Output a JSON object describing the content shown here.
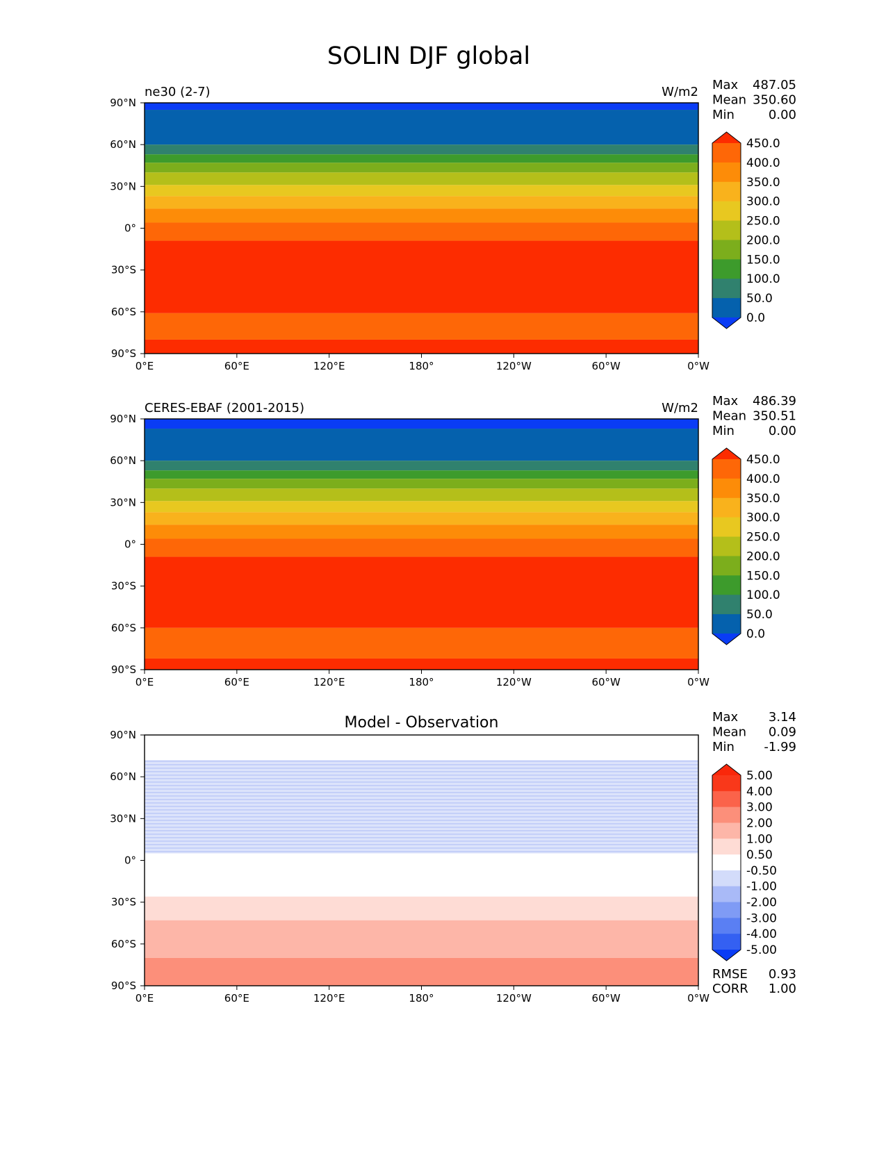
{
  "figure": {
    "title": "SOLIN DJF global"
  },
  "chart_data": [
    {
      "type": "heatmap",
      "name": "ne30",
      "left_title": "ne30 (2-7)",
      "center_title": "",
      "units": "W/m2",
      "stats": {
        "max": "487.05",
        "mean": "350.60",
        "min": "0.00"
      },
      "xticks": [
        "0°E",
        "60°E",
        "120°E",
        "180°",
        "120°W",
        "60°W",
        "0°W"
      ],
      "yticks": [
        "90°N",
        "60°N",
        "30°N",
        "0°",
        "30°S",
        "60°S",
        "90°S"
      ],
      "xlim": [
        0,
        360
      ],
      "ylim": [
        -90,
        90
      ],
      "levels": [
        "0.0",
        "50.0",
        "100.0",
        "150.0",
        "200.0",
        "250.0",
        "300.0",
        "350.0",
        "400.0",
        "450.0"
      ],
      "colors": [
        "#0a3cf5",
        "#0561ad",
        "#30816e",
        "#3d9b2c",
        "#7cae1c",
        "#b4bf1a",
        "#e8c820",
        "#f9b21c",
        "#fd8c08",
        "#fe6707",
        "#fd2c00"
      ],
      "bands": [
        {
          "lat_min": 85,
          "lat_max": 90,
          "color": "#0a3cf5"
        },
        {
          "lat_min": 60,
          "lat_max": 85,
          "color": "#0561ad"
        },
        {
          "lat_min": 53,
          "lat_max": 60,
          "color": "#30816e"
        },
        {
          "lat_min": 47,
          "lat_max": 53,
          "color": "#3d9b2c"
        },
        {
          "lat_min": 40,
          "lat_max": 47,
          "color": "#7cae1c"
        },
        {
          "lat_min": 31,
          "lat_max": 40,
          "color": "#b4bf1a"
        },
        {
          "lat_min": 23,
          "lat_max": 31,
          "color": "#e8c820"
        },
        {
          "lat_min": 14,
          "lat_max": 23,
          "color": "#f9b21c"
        },
        {
          "lat_min": 4,
          "lat_max": 14,
          "color": "#fd8c08"
        },
        {
          "lat_min": -9,
          "lat_max": 4,
          "color": "#fe6707"
        },
        {
          "lat_min": -61,
          "lat_max": -9,
          "color": "#fd2c00"
        },
        {
          "lat_min": -80,
          "lat_max": -61,
          "color": "#fe6707"
        },
        {
          "lat_min": -90,
          "lat_max": -80,
          "color": "#fd2c00"
        }
      ]
    },
    {
      "type": "heatmap",
      "name": "ceres",
      "left_title": "CERES-EBAF (2001-2015)",
      "center_title": "",
      "units": "W/m2",
      "stats": {
        "max": "486.39",
        "mean": "350.51",
        "min": "0.00"
      },
      "xticks": [
        "0°E",
        "60°E",
        "120°E",
        "180°",
        "120°W",
        "60°W",
        "0°W"
      ],
      "yticks": [
        "90°N",
        "60°N",
        "30°N",
        "0°",
        "30°S",
        "60°S",
        "90°S"
      ],
      "xlim": [
        0,
        360
      ],
      "ylim": [
        -90,
        90
      ],
      "levels": [
        "0.0",
        "50.0",
        "100.0",
        "150.0",
        "200.0",
        "250.0",
        "300.0",
        "350.0",
        "400.0",
        "450.0"
      ],
      "colors": [
        "#0a3cf5",
        "#0561ad",
        "#30816e",
        "#3d9b2c",
        "#7cae1c",
        "#b4bf1a",
        "#e8c820",
        "#f9b21c",
        "#fd8c08",
        "#fe6707",
        "#fd2c00"
      ],
      "bands": [
        {
          "lat_min": 83,
          "lat_max": 90,
          "color": "#0a3cf5"
        },
        {
          "lat_min": 60,
          "lat_max": 83,
          "color": "#0561ad"
        },
        {
          "lat_min": 53,
          "lat_max": 60,
          "color": "#30816e"
        },
        {
          "lat_min": 47,
          "lat_max": 53,
          "color": "#3d9b2c"
        },
        {
          "lat_min": 40,
          "lat_max": 47,
          "color": "#7cae1c"
        },
        {
          "lat_min": 31,
          "lat_max": 40,
          "color": "#b4bf1a"
        },
        {
          "lat_min": 23,
          "lat_max": 31,
          "color": "#e8c820"
        },
        {
          "lat_min": 14,
          "lat_max": 23,
          "color": "#f9b21c"
        },
        {
          "lat_min": 4,
          "lat_max": 14,
          "color": "#fd8c08"
        },
        {
          "lat_min": -9,
          "lat_max": 4,
          "color": "#fe6707"
        },
        {
          "lat_min": -60,
          "lat_max": -9,
          "color": "#fd2c00"
        },
        {
          "lat_min": -82,
          "lat_max": -60,
          "color": "#fe6707"
        },
        {
          "lat_min": -90,
          "lat_max": -82,
          "color": "#fd2c00"
        }
      ]
    },
    {
      "type": "heatmap",
      "name": "diff",
      "left_title": "",
      "center_title": "Model - Observation",
      "units": "",
      "stats": {
        "max": "3.14",
        "mean": "0.09",
        "min": "-1.99"
      },
      "rmse": {
        "label": "RMSE",
        "value": "0.93"
      },
      "corr": {
        "label": "CORR",
        "value": "1.00"
      },
      "xticks": [
        "0°E",
        "60°E",
        "120°E",
        "180°",
        "120°W",
        "60°W",
        "0°W"
      ],
      "yticks": [
        "90°N",
        "60°N",
        "30°N",
        "0°",
        "30°S",
        "60°S",
        "90°S"
      ],
      "xlim": [
        0,
        360
      ],
      "ylim": [
        -90,
        90
      ],
      "levels": [
        "-5.00",
        "-4.00",
        "-3.00",
        "-2.00",
        "-1.00",
        "-0.50",
        "0.50",
        "1.00",
        "2.00",
        "3.00",
        "4.00",
        "5.00"
      ],
      "colors": [
        "#0a3cf5",
        "#3460f2",
        "#5a7ff3",
        "#7f9bf5",
        "#a9baf7",
        "#d3dcfa",
        "#ffffff",
        "#fedcd5",
        "#fdb6a8",
        "#fc8f7a",
        "#fb634a",
        "#f9381a",
        "#f9270a"
      ],
      "bands": [
        {
          "lat_min": 72,
          "lat_max": 90,
          "color": "#ffffff"
        },
        {
          "lat_min": 5,
          "lat_max": 72,
          "color": "#d3dcfa",
          "hatched": true
        },
        {
          "lat_min": -26,
          "lat_max": 5,
          "color": "#ffffff"
        },
        {
          "lat_min": -43,
          "lat_max": -26,
          "color": "#fedcd5"
        },
        {
          "lat_min": -70,
          "lat_max": -43,
          "color": "#fdb6a8"
        },
        {
          "lat_min": -90,
          "lat_max": -70,
          "color": "#fc8f7a"
        }
      ]
    }
  ]
}
